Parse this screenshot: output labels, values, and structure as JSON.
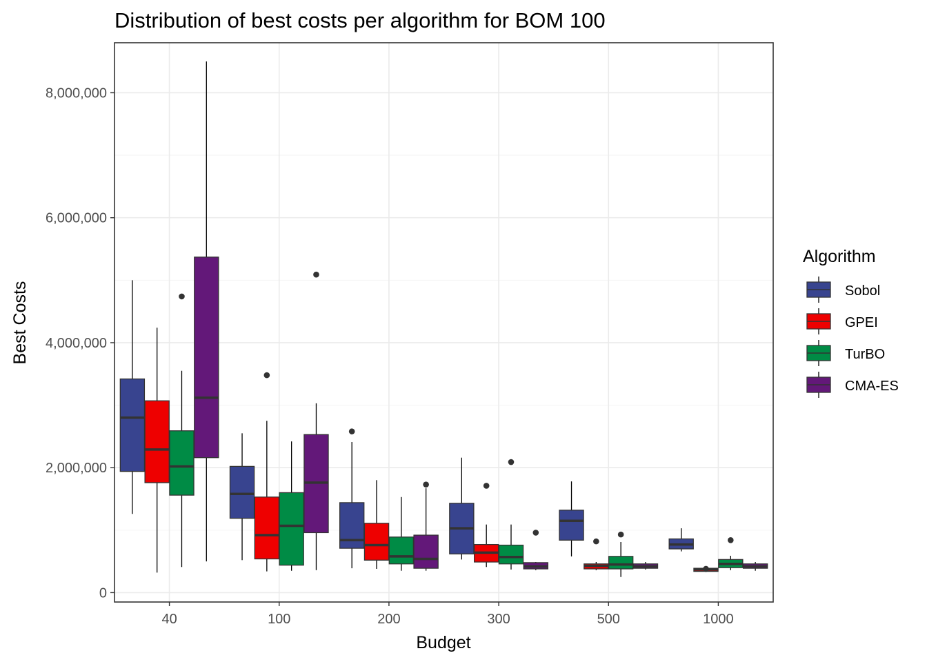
{
  "chart_data": {
    "type": "boxplot",
    "title": "Distribution of best costs per algorithm for BOM 100",
    "xlabel": "Budget",
    "ylabel": "Best Costs",
    "categories": [
      "40",
      "100",
      "200",
      "300",
      "500",
      "1000"
    ],
    "y_ticks": [
      0,
      2000000,
      4000000,
      6000000,
      8000000
    ],
    "y_tick_labels": [
      "0",
      "2,000,000",
      "4,000,000",
      "6,000,000",
      "8,000,000"
    ],
    "ylim": [
      -150000,
      8800000
    ],
    "grid": true,
    "legend": {
      "title": "Algorithm",
      "position": "right"
    },
    "series": [
      {
        "name": "Sobol",
        "color": "#38448f",
        "boxes": [
          {
            "min": 1260000,
            "q1": 1940000,
            "median": 2800000,
            "q3": 3420000,
            "max": 5000000,
            "outliers": []
          },
          {
            "min": 520000,
            "q1": 1190000,
            "median": 1580000,
            "q3": 2020000,
            "max": 2550000,
            "outliers": []
          },
          {
            "min": 390000,
            "q1": 710000,
            "median": 840000,
            "q3": 1440000,
            "max": 2410000,
            "outliers": [
              2580000
            ]
          },
          {
            "min": 530000,
            "q1": 620000,
            "median": 1030000,
            "q3": 1430000,
            "max": 2160000,
            "outliers": []
          },
          {
            "min": 580000,
            "q1": 840000,
            "median": 1150000,
            "q3": 1320000,
            "max": 1780000,
            "outliers": []
          },
          {
            "min": 660000,
            "q1": 700000,
            "median": 770000,
            "q3": 860000,
            "max": 1030000,
            "outliers": []
          }
        ]
      },
      {
        "name": "GPEI",
        "color": "#ee0000",
        "boxes": [
          {
            "min": 320000,
            "q1": 1760000,
            "median": 2290000,
            "q3": 3070000,
            "max": 4240000,
            "outliers": []
          },
          {
            "min": 340000,
            "q1": 540000,
            "median": 920000,
            "q3": 1530000,
            "max": 2750000,
            "outliers": [
              3480000
            ]
          },
          {
            "min": 380000,
            "q1": 520000,
            "median": 760000,
            "q3": 1110000,
            "max": 1800000,
            "outliers": []
          },
          {
            "min": 410000,
            "q1": 490000,
            "median": 640000,
            "q3": 770000,
            "max": 1090000,
            "outliers": [
              1710000
            ]
          },
          {
            "min": 360000,
            "q1": 380000,
            "median": 430000,
            "q3": 460000,
            "max": 490000,
            "outliers": [
              820000
            ]
          },
          {
            "min": 330000,
            "q1": 340000,
            "median": 370000,
            "q3": 390000,
            "max": 400000,
            "outliers": [
              380000
            ]
          }
        ]
      },
      {
        "name": "TurBO",
        "color": "#008b45",
        "boxes": [
          {
            "min": 410000,
            "q1": 1560000,
            "median": 2020000,
            "q3": 2590000,
            "max": 3550000,
            "outliers": [
              4740000
            ]
          },
          {
            "min": 350000,
            "q1": 440000,
            "median": 1070000,
            "q3": 1600000,
            "max": 2420000,
            "outliers": []
          },
          {
            "min": 350000,
            "q1": 460000,
            "median": 580000,
            "q3": 890000,
            "max": 1530000,
            "outliers": []
          },
          {
            "min": 370000,
            "q1": 460000,
            "median": 570000,
            "q3": 760000,
            "max": 1090000,
            "outliers": [
              2090000
            ]
          },
          {
            "min": 250000,
            "q1": 380000,
            "median": 450000,
            "q3": 580000,
            "max": 810000,
            "outliers": [
              930000
            ]
          },
          {
            "min": 360000,
            "q1": 400000,
            "median": 460000,
            "q3": 530000,
            "max": 590000,
            "outliers": [
              840000
            ]
          }
        ]
      },
      {
        "name": "CMA-ES",
        "color": "#631879",
        "boxes": [
          {
            "min": 500000,
            "q1": 2160000,
            "median": 3120000,
            "q3": 5370000,
            "max": 8500000,
            "outliers": []
          },
          {
            "min": 360000,
            "q1": 960000,
            "median": 1760000,
            "q3": 2530000,
            "max": 3030000,
            "outliers": [
              5090000
            ]
          },
          {
            "min": 350000,
            "q1": 390000,
            "median": 540000,
            "q3": 920000,
            "max": 1670000,
            "outliers": [
              1730000
            ]
          },
          {
            "min": 360000,
            "q1": 380000,
            "median": 420000,
            "q3": 480000,
            "max": 490000,
            "outliers": [
              960000
            ]
          },
          {
            "min": 370000,
            "q1": 390000,
            "median": 420000,
            "q3": 460000,
            "max": 490000,
            "outliers": []
          },
          {
            "min": 350000,
            "q1": 390000,
            "median": 420000,
            "q3": 460000,
            "max": 490000,
            "outliers": []
          }
        ]
      }
    ]
  }
}
